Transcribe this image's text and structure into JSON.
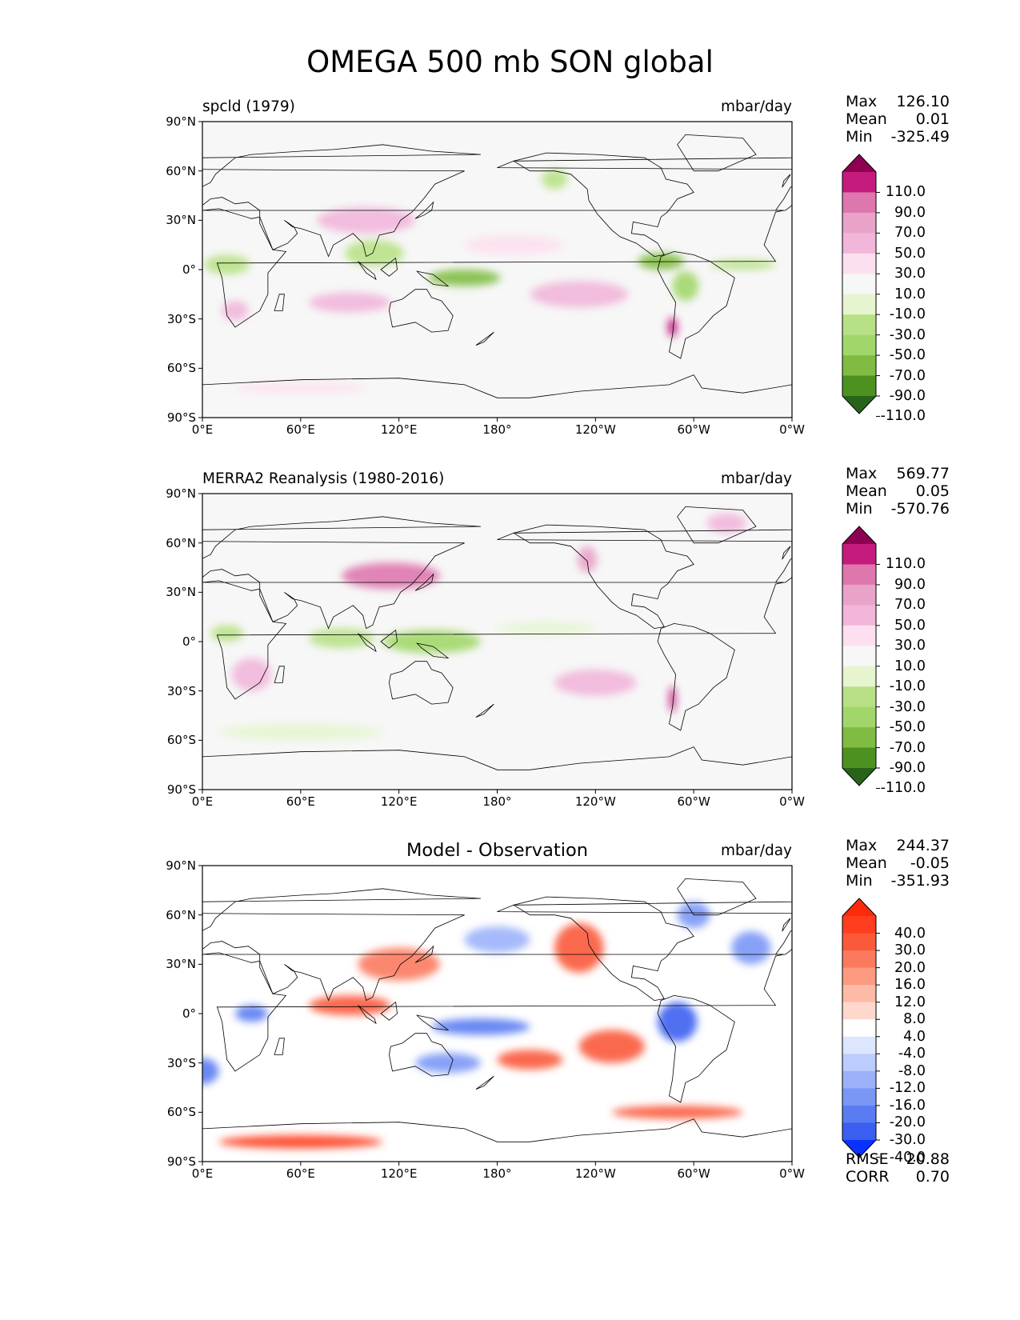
{
  "figure": {
    "title": "OMEGA 500 mb SON global",
    "lon_ticks": [
      "0°E",
      "60°E",
      "120°E",
      "180°",
      "120°W",
      "60°W",
      "0°W"
    ],
    "lat_ticks": [
      "90°N",
      "60°N",
      "30°N",
      "0°",
      "30°S",
      "60°S",
      "90°S"
    ]
  },
  "panels": [
    {
      "left_title": "spcld (1979)",
      "center_title": "",
      "units": "mbar/day",
      "stats": [
        {
          "label": "Max",
          "value": "126.10"
        },
        {
          "label": "Mean",
          "value": "0.01"
        },
        {
          "label": "Min",
          "value": "-325.49"
        }
      ],
      "colorbar": {
        "labels": [
          "110.0",
          "90.0",
          "70.0",
          "50.0",
          "30.0",
          "10.0",
          "-10.0",
          "-30.0",
          "-50.0",
          "-70.0",
          "-90.0",
          "-110.0"
        ],
        "colors": [
          "#8e0152",
          "#c51b7d",
          "#de77ae",
          "#e9a3c9",
          "#f1b6da",
          "#fde0ef",
          "#f7f7f7",
          "#e6f5d0",
          "#b8e186",
          "#a1d76a",
          "#7fbc41",
          "#4d9221",
          "#276419"
        ]
      },
      "footer": []
    },
    {
      "left_title": "MERRA2 Reanalysis (1980-2016)",
      "center_title": "",
      "units": "mbar/day",
      "stats": [
        {
          "label": "Max",
          "value": "569.77"
        },
        {
          "label": "Mean",
          "value": "0.05"
        },
        {
          "label": "Min",
          "value": "-570.76"
        }
      ],
      "colorbar": {
        "labels": [
          "110.0",
          "90.0",
          "70.0",
          "50.0",
          "30.0",
          "10.0",
          "-10.0",
          "-30.0",
          "-50.0",
          "-70.0",
          "-90.0",
          "-110.0"
        ],
        "colors": [
          "#8e0152",
          "#c51b7d",
          "#de77ae",
          "#e9a3c9",
          "#f1b6da",
          "#fde0ef",
          "#f7f7f7",
          "#e6f5d0",
          "#b8e186",
          "#a1d76a",
          "#7fbc41",
          "#4d9221",
          "#276419"
        ]
      },
      "footer": []
    },
    {
      "left_title": "",
      "center_title": "Model - Observation",
      "units": "mbar/day",
      "stats": [
        {
          "label": "Max",
          "value": "244.37"
        },
        {
          "label": "Mean",
          "value": "-0.05"
        },
        {
          "label": "Min",
          "value": "-351.93"
        }
      ],
      "colorbar": {
        "labels": [
          "40.0",
          "30.0",
          "20.0",
          "16.0",
          "12.0",
          "8.0",
          "4.0",
          "-4.0",
          "-8.0",
          "-12.0",
          "-16.0",
          "-20.0",
          "-30.0",
          "-40.0"
        ],
        "colors": [
          "#ff2a0a",
          "#ff3d1f",
          "#fa5a3a",
          "#fb7a5e",
          "#fc9a80",
          "#fdbaa6",
          "#fed8cc",
          "#ffffff",
          "#dde6ff",
          "#bccdfd",
          "#9bb2fa",
          "#7a97f6",
          "#5a7cf2",
          "#3a5ff0",
          "#0a32ff"
        ]
      },
      "footer": [
        {
          "label": "RMSE",
          "value": "20.88"
        },
        {
          "label": "CORR",
          "value": "0.70"
        }
      ]
    }
  ],
  "chart_data": {
    "type": "heatmap",
    "title": "OMEGA 500 mb SON global",
    "variable": "OMEGA 500 mb",
    "season": "SON",
    "units": "mbar/day",
    "x_range": [
      0,
      360
    ],
    "y_range": [
      -90,
      90
    ],
    "maps": [
      {
        "name": "spcld (1979)",
        "max": 126.1,
        "mean": 0.01,
        "min": -325.49,
        "levels": [
          -110,
          -90,
          -70,
          -50,
          -30,
          -10,
          10,
          30,
          50,
          70,
          90,
          110
        ]
      },
      {
        "name": "MERRA2 Reanalysis (1980-2016)",
        "max": 569.77,
        "mean": 0.05,
        "min": -570.76,
        "levels": [
          -110,
          -90,
          -70,
          -50,
          -30,
          -10,
          10,
          30,
          50,
          70,
          90,
          110
        ]
      },
      {
        "name": "Model - Observation",
        "max": 244.37,
        "mean": -0.05,
        "min": -351.93,
        "rmse": 20.88,
        "corr": 0.7,
        "levels": [
          -40,
          -30,
          -20,
          -16,
          -12,
          -8,
          -4,
          4,
          8,
          12,
          16,
          20,
          30,
          40
        ]
      }
    ],
    "features": [
      {
        "panel": 0,
        "lon": 160,
        "lat": -5,
        "value": -75,
        "sx": 22,
        "sy": 5
      },
      {
        "panel": 0,
        "lon": 280,
        "lat": 5,
        "value": -85,
        "sx": 14,
        "sy": 5
      },
      {
        "panel": 0,
        "lon": 295,
        "lat": -10,
        "value": -55,
        "sx": 8,
        "sy": 9
      },
      {
        "panel": 0,
        "lon": 105,
        "lat": 10,
        "value": -45,
        "sx": 18,
        "sy": 8
      },
      {
        "panel": 0,
        "lon": 215,
        "lat": 55,
        "value": -45,
        "sx": 8,
        "sy": 6
      },
      {
        "panel": 0,
        "lon": 15,
        "lat": 3,
        "value": -40,
        "sx": 14,
        "sy": 6
      },
      {
        "panel": 0,
        "lon": 330,
        "lat": 3,
        "value": -40,
        "sx": 20,
        "sy": 3
      },
      {
        "panel": 0,
        "lon": 230,
        "lat": -15,
        "value": 40,
        "sx": 30,
        "sy": 8
      },
      {
        "panel": 0,
        "lon": 90,
        "lat": -20,
        "value": 35,
        "sx": 25,
        "sy": 6
      },
      {
        "panel": 0,
        "lon": 100,
        "lat": 30,
        "value": 30,
        "sx": 30,
        "sy": 8
      },
      {
        "panel": 0,
        "lon": 287,
        "lat": -35,
        "value": 90,
        "sx": 3,
        "sy": 6
      },
      {
        "panel": 0,
        "lon": 190,
        "lat": 15,
        "value": 25,
        "sx": 30,
        "sy": 6
      },
      {
        "panel": 0,
        "lon": 60,
        "lat": -72,
        "value": 25,
        "sx": 40,
        "sy": 3
      },
      {
        "panel": 0,
        "lon": 20,
        "lat": -25,
        "value": 30,
        "sx": 8,
        "sy": 6
      },
      {
        "panel": 1,
        "lon": 115,
        "lat": 40,
        "value": 70,
        "sx": 30,
        "sy": 8
      },
      {
        "panel": 1,
        "lon": 235,
        "lat": 50,
        "value": 60,
        "sx": 6,
        "sy": 8
      },
      {
        "panel": 1,
        "lon": 140,
        "lat": 0,
        "value": -55,
        "sx": 30,
        "sy": 7
      },
      {
        "panel": 1,
        "lon": 85,
        "lat": 2,
        "value": -35,
        "sx": 20,
        "sy": 6
      },
      {
        "panel": 1,
        "lon": 287,
        "lat": -35,
        "value": 90,
        "sx": 2,
        "sy": 8
      },
      {
        "panel": 1,
        "lon": 30,
        "lat": -20,
        "value": 30,
        "sx": 12,
        "sy": 10
      },
      {
        "panel": 1,
        "lon": 210,
        "lat": 8,
        "value": -30,
        "sx": 30,
        "sy": 4
      },
      {
        "panel": 1,
        "lon": 240,
        "lat": -25,
        "value": 30,
        "sx": 25,
        "sy": 8
      },
      {
        "panel": 1,
        "lon": 60,
        "lat": -55,
        "value": -20,
        "sx": 50,
        "sy": 5
      },
      {
        "panel": 1,
        "lon": 320,
        "lat": 72,
        "value": 40,
        "sx": 12,
        "sy": 6
      },
      {
        "panel": 1,
        "lon": 15,
        "lat": 5,
        "value": -40,
        "sx": 10,
        "sy": 5
      },
      {
        "panel": 2,
        "lon": 290,
        "lat": -5,
        "value": -35,
        "sx": 12,
        "sy": 12
      },
      {
        "panel": 2,
        "lon": 170,
        "lat": -8,
        "value": -25,
        "sx": 30,
        "sy": 5
      },
      {
        "panel": 2,
        "lon": 230,
        "lat": 40,
        "value": 25,
        "sx": 15,
        "sy": 15
      },
      {
        "panel": 2,
        "lon": 90,
        "lat": 5,
        "value": 22,
        "sx": 25,
        "sy": 6
      },
      {
        "panel": 2,
        "lon": 250,
        "lat": -20,
        "value": 28,
        "sx": 20,
        "sy": 10
      },
      {
        "panel": 2,
        "lon": 30,
        "lat": 0,
        "value": -30,
        "sx": 10,
        "sy": 5
      },
      {
        "panel": 2,
        "lon": 335,
        "lat": 40,
        "value": -20,
        "sx": 12,
        "sy": 10
      },
      {
        "panel": 2,
        "lon": 180,
        "lat": 45,
        "value": -15,
        "sx": 20,
        "sy": 8
      },
      {
        "panel": 2,
        "lon": 120,
        "lat": 30,
        "value": 18,
        "sx": 25,
        "sy": 10
      },
      {
        "panel": 2,
        "lon": 0,
        "lat": -35,
        "value": -25,
        "sx": 10,
        "sy": 8
      },
      {
        "panel": 2,
        "lon": 290,
        "lat": -60,
        "value": 25,
        "sx": 40,
        "sy": 4
      },
      {
        "panel": 2,
        "lon": 150,
        "lat": -30,
        "value": -18,
        "sx": 20,
        "sy": 6
      },
      {
        "panel": 2,
        "lon": 200,
        "lat": -28,
        "value": 20,
        "sx": 20,
        "sy": 6
      },
      {
        "panel": 2,
        "lon": 60,
        "lat": -78,
        "value": 30,
        "sx": 50,
        "sy": 4
      },
      {
        "panel": 2,
        "lon": 300,
        "lat": 60,
        "value": -20,
        "sx": 10,
        "sy": 8
      }
    ]
  }
}
